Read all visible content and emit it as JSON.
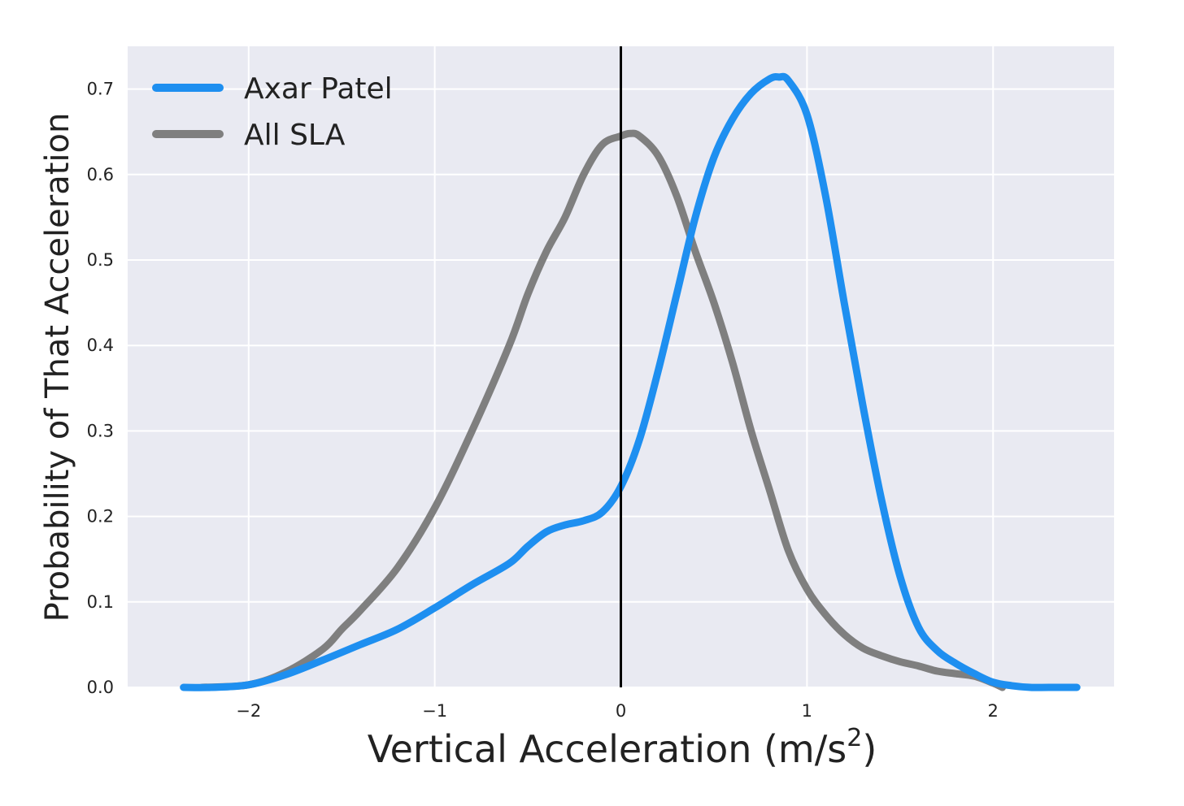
{
  "chart_data": {
    "type": "line",
    "title": "",
    "xlabel": "Vertical Acceleration (m/s",
    "xlabel_superscript": "2",
    "xlabel_close": ")",
    "ylabel": "Probability of That Acceleration",
    "xlim": [
      -2.65,
      2.65
    ],
    "ylim": [
      0.0,
      0.75
    ],
    "xticks": [
      -2,
      -1,
      0,
      1,
      2
    ],
    "xtick_labels": [
      "−2",
      "−1",
      "0",
      "1",
      "2"
    ],
    "yticks": [
      0.0,
      0.1,
      0.2,
      0.3,
      0.4,
      0.5,
      0.6,
      0.7
    ],
    "ytick_labels": [
      "0.0",
      "0.1",
      "0.2",
      "0.3",
      "0.4",
      "0.5",
      "0.6",
      "0.7"
    ],
    "grid": true,
    "background": "#e9eaf2",
    "legend_position": "top-left",
    "vline": {
      "x": 0,
      "color": "#000000"
    },
    "series": [
      {
        "name": "Axar Patel",
        "color": "#1e8ff0",
        "x": [
          -2.35,
          -2.2,
          -2.0,
          -1.8,
          -1.6,
          -1.4,
          -1.2,
          -1.0,
          -0.8,
          -0.6,
          -0.5,
          -0.4,
          -0.3,
          -0.2,
          -0.1,
          0.0,
          0.1,
          0.2,
          0.3,
          0.4,
          0.5,
          0.6,
          0.7,
          0.8,
          0.85,
          0.9,
          1.0,
          1.1,
          1.2,
          1.3,
          1.4,
          1.5,
          1.6,
          1.7,
          1.8,
          1.9,
          2.0,
          2.1,
          2.2,
          2.3,
          2.45
        ],
        "y": [
          0.0,
          0.0,
          0.003,
          0.015,
          0.032,
          0.05,
          0.068,
          0.093,
          0.12,
          0.145,
          0.165,
          0.182,
          0.19,
          0.195,
          0.205,
          0.235,
          0.29,
          0.37,
          0.46,
          0.55,
          0.62,
          0.665,
          0.695,
          0.712,
          0.714,
          0.71,
          0.67,
          0.575,
          0.45,
          0.33,
          0.22,
          0.13,
          0.07,
          0.043,
          0.028,
          0.016,
          0.006,
          0.002,
          0.0,
          0.0,
          0.0
        ]
      },
      {
        "name": "All SLA",
        "color": "#7f7f7f",
        "x": [
          -2.25,
          -2.0,
          -1.8,
          -1.6,
          -1.5,
          -1.4,
          -1.2,
          -1.0,
          -0.8,
          -0.6,
          -0.5,
          -0.4,
          -0.3,
          -0.2,
          -0.1,
          0.0,
          0.05,
          0.1,
          0.2,
          0.3,
          0.4,
          0.5,
          0.6,
          0.7,
          0.8,
          0.9,
          1.0,
          1.1,
          1.2,
          1.3,
          1.4,
          1.5,
          1.6,
          1.7,
          1.8,
          1.9,
          2.0,
          2.05
        ],
        "y": [
          0.0,
          0.003,
          0.018,
          0.045,
          0.068,
          0.09,
          0.14,
          0.21,
          0.3,
          0.4,
          0.46,
          0.51,
          0.55,
          0.6,
          0.635,
          0.645,
          0.648,
          0.645,
          0.622,
          0.575,
          0.51,
          0.45,
          0.38,
          0.3,
          0.23,
          0.16,
          0.115,
          0.085,
          0.062,
          0.046,
          0.037,
          0.03,
          0.025,
          0.019,
          0.016,
          0.013,
          0.005,
          0.0
        ]
      }
    ]
  }
}
